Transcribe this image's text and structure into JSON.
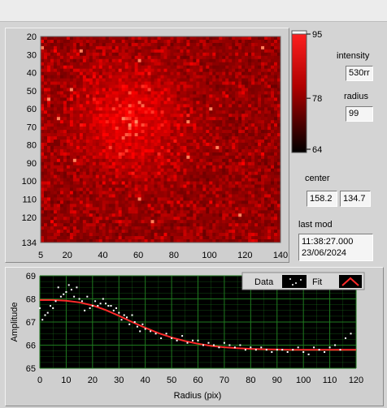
{
  "image_panel": {
    "y_ticks": [
      "20",
      "30",
      "40",
      "50",
      "60",
      "70",
      "80",
      "90",
      "100",
      "110",
      "120",
      "134"
    ],
    "y_tick_values": [
      20,
      30,
      40,
      50,
      60,
      70,
      80,
      90,
      100,
      110,
      120,
      134
    ],
    "x_ticks": [
      "5",
      "20",
      "40",
      "60",
      "80",
      "100",
      "120",
      "140"
    ],
    "x_tick_values": [
      5,
      20,
      40,
      60,
      80,
      100,
      120,
      140
    ],
    "x_range": [
      5,
      140
    ],
    "y_range": [
      20,
      134
    ],
    "colorbar": {
      "ticks": [
        "95",
        "78",
        "64"
      ],
      "tick_values": [
        95,
        78,
        64
      ],
      "range": [
        64,
        95
      ]
    },
    "spot_center": [
      55,
      67
    ]
  },
  "readouts": {
    "intensity_label": "intensity",
    "intensity_value": "530rr",
    "radius_label": "radius",
    "radius_value": "99",
    "center_label": "center",
    "center_x": "158.2",
    "center_y": "134.7",
    "last_mod_label": "last mod",
    "last_mod_time": "11:38:27.000",
    "last_mod_date": "23/06/2024"
  },
  "chart_data": {
    "type": "scatter",
    "xlabel": "Radius (pix)",
    "ylabel": "Amplitude",
    "xlim": [
      0,
      120
    ],
    "ylim": [
      65,
      69
    ],
    "x_ticks": [
      0,
      10,
      20,
      30,
      40,
      50,
      60,
      70,
      80,
      90,
      100,
      110,
      120
    ],
    "y_ticks": [
      65,
      66,
      67,
      68,
      69
    ],
    "grid": true,
    "legend": [
      "Data",
      "Fit"
    ],
    "series": [
      {
        "name": "Data",
        "kind": "points",
        "color": "#ffffff",
        "x": [
          0,
          1,
          2,
          3,
          4,
          5,
          6,
          7,
          8,
          9,
          10,
          11,
          12,
          13,
          14,
          15,
          16,
          17,
          18,
          19,
          20,
          21,
          22,
          23,
          24,
          25,
          26,
          27,
          28,
          29,
          30,
          31,
          32,
          33,
          34,
          35,
          36,
          37,
          38,
          39,
          40,
          42,
          44,
          46,
          48,
          50,
          52,
          54,
          56,
          58,
          60,
          62,
          64,
          66,
          68,
          70,
          72,
          74,
          76,
          78,
          80,
          82,
          84,
          86,
          88,
          90,
          92,
          94,
          96,
          98,
          100,
          102,
          104,
          106,
          108,
          110,
          112,
          114,
          116,
          118
        ],
        "y": [
          67.6,
          67.1,
          67.3,
          67.4,
          67.7,
          67.6,
          67.9,
          68.5,
          68.1,
          68.2,
          68.3,
          68.6,
          68.4,
          68.1,
          68.5,
          68.0,
          67.9,
          67.5,
          68.1,
          67.6,
          67.7,
          67.9,
          67.7,
          67.8,
          68.0,
          67.8,
          67.7,
          67.7,
          67.5,
          67.6,
          67.4,
          67.1,
          67.3,
          67.2,
          66.9,
          67.3,
          67.0,
          66.8,
          66.6,
          66.9,
          66.7,
          66.6,
          66.5,
          66.3,
          66.5,
          66.3,
          66.2,
          66.4,
          66.1,
          66.2,
          66.2,
          66.0,
          66.1,
          66.0,
          65.9,
          66.1,
          66.0,
          65.9,
          66.0,
          65.8,
          65.9,
          65.8,
          65.9,
          65.8,
          65.7,
          65.8,
          65.8,
          65.7,
          65.8,
          65.9,
          65.7,
          65.6,
          65.9,
          65.8,
          65.7,
          65.9,
          66.0,
          65.8,
          66.3,
          66.5
        ]
      },
      {
        "name": "Fit",
        "kind": "line",
        "color": "#ff2a2a",
        "x": [
          0,
          5,
          10,
          15,
          20,
          25,
          30,
          35,
          40,
          45,
          50,
          55,
          60,
          65,
          70,
          75,
          80,
          85,
          90,
          95,
          100,
          105,
          110,
          115,
          120
        ],
        "y": [
          67.95,
          67.95,
          67.92,
          67.85,
          67.72,
          67.52,
          67.27,
          67.0,
          66.75,
          66.52,
          66.33,
          66.18,
          66.06,
          65.97,
          65.91,
          65.87,
          65.84,
          65.82,
          65.81,
          65.8,
          65.8,
          65.8,
          65.8,
          65.8,
          65.8
        ]
      }
    ]
  },
  "colors": {
    "plot_background": "#000000",
    "grid": "#1f7a1f",
    "fit_line": "#ff2a2a",
    "data_points": "#ffffff",
    "heat_high": "#ff2020",
    "heat_low": "#1a0000"
  }
}
